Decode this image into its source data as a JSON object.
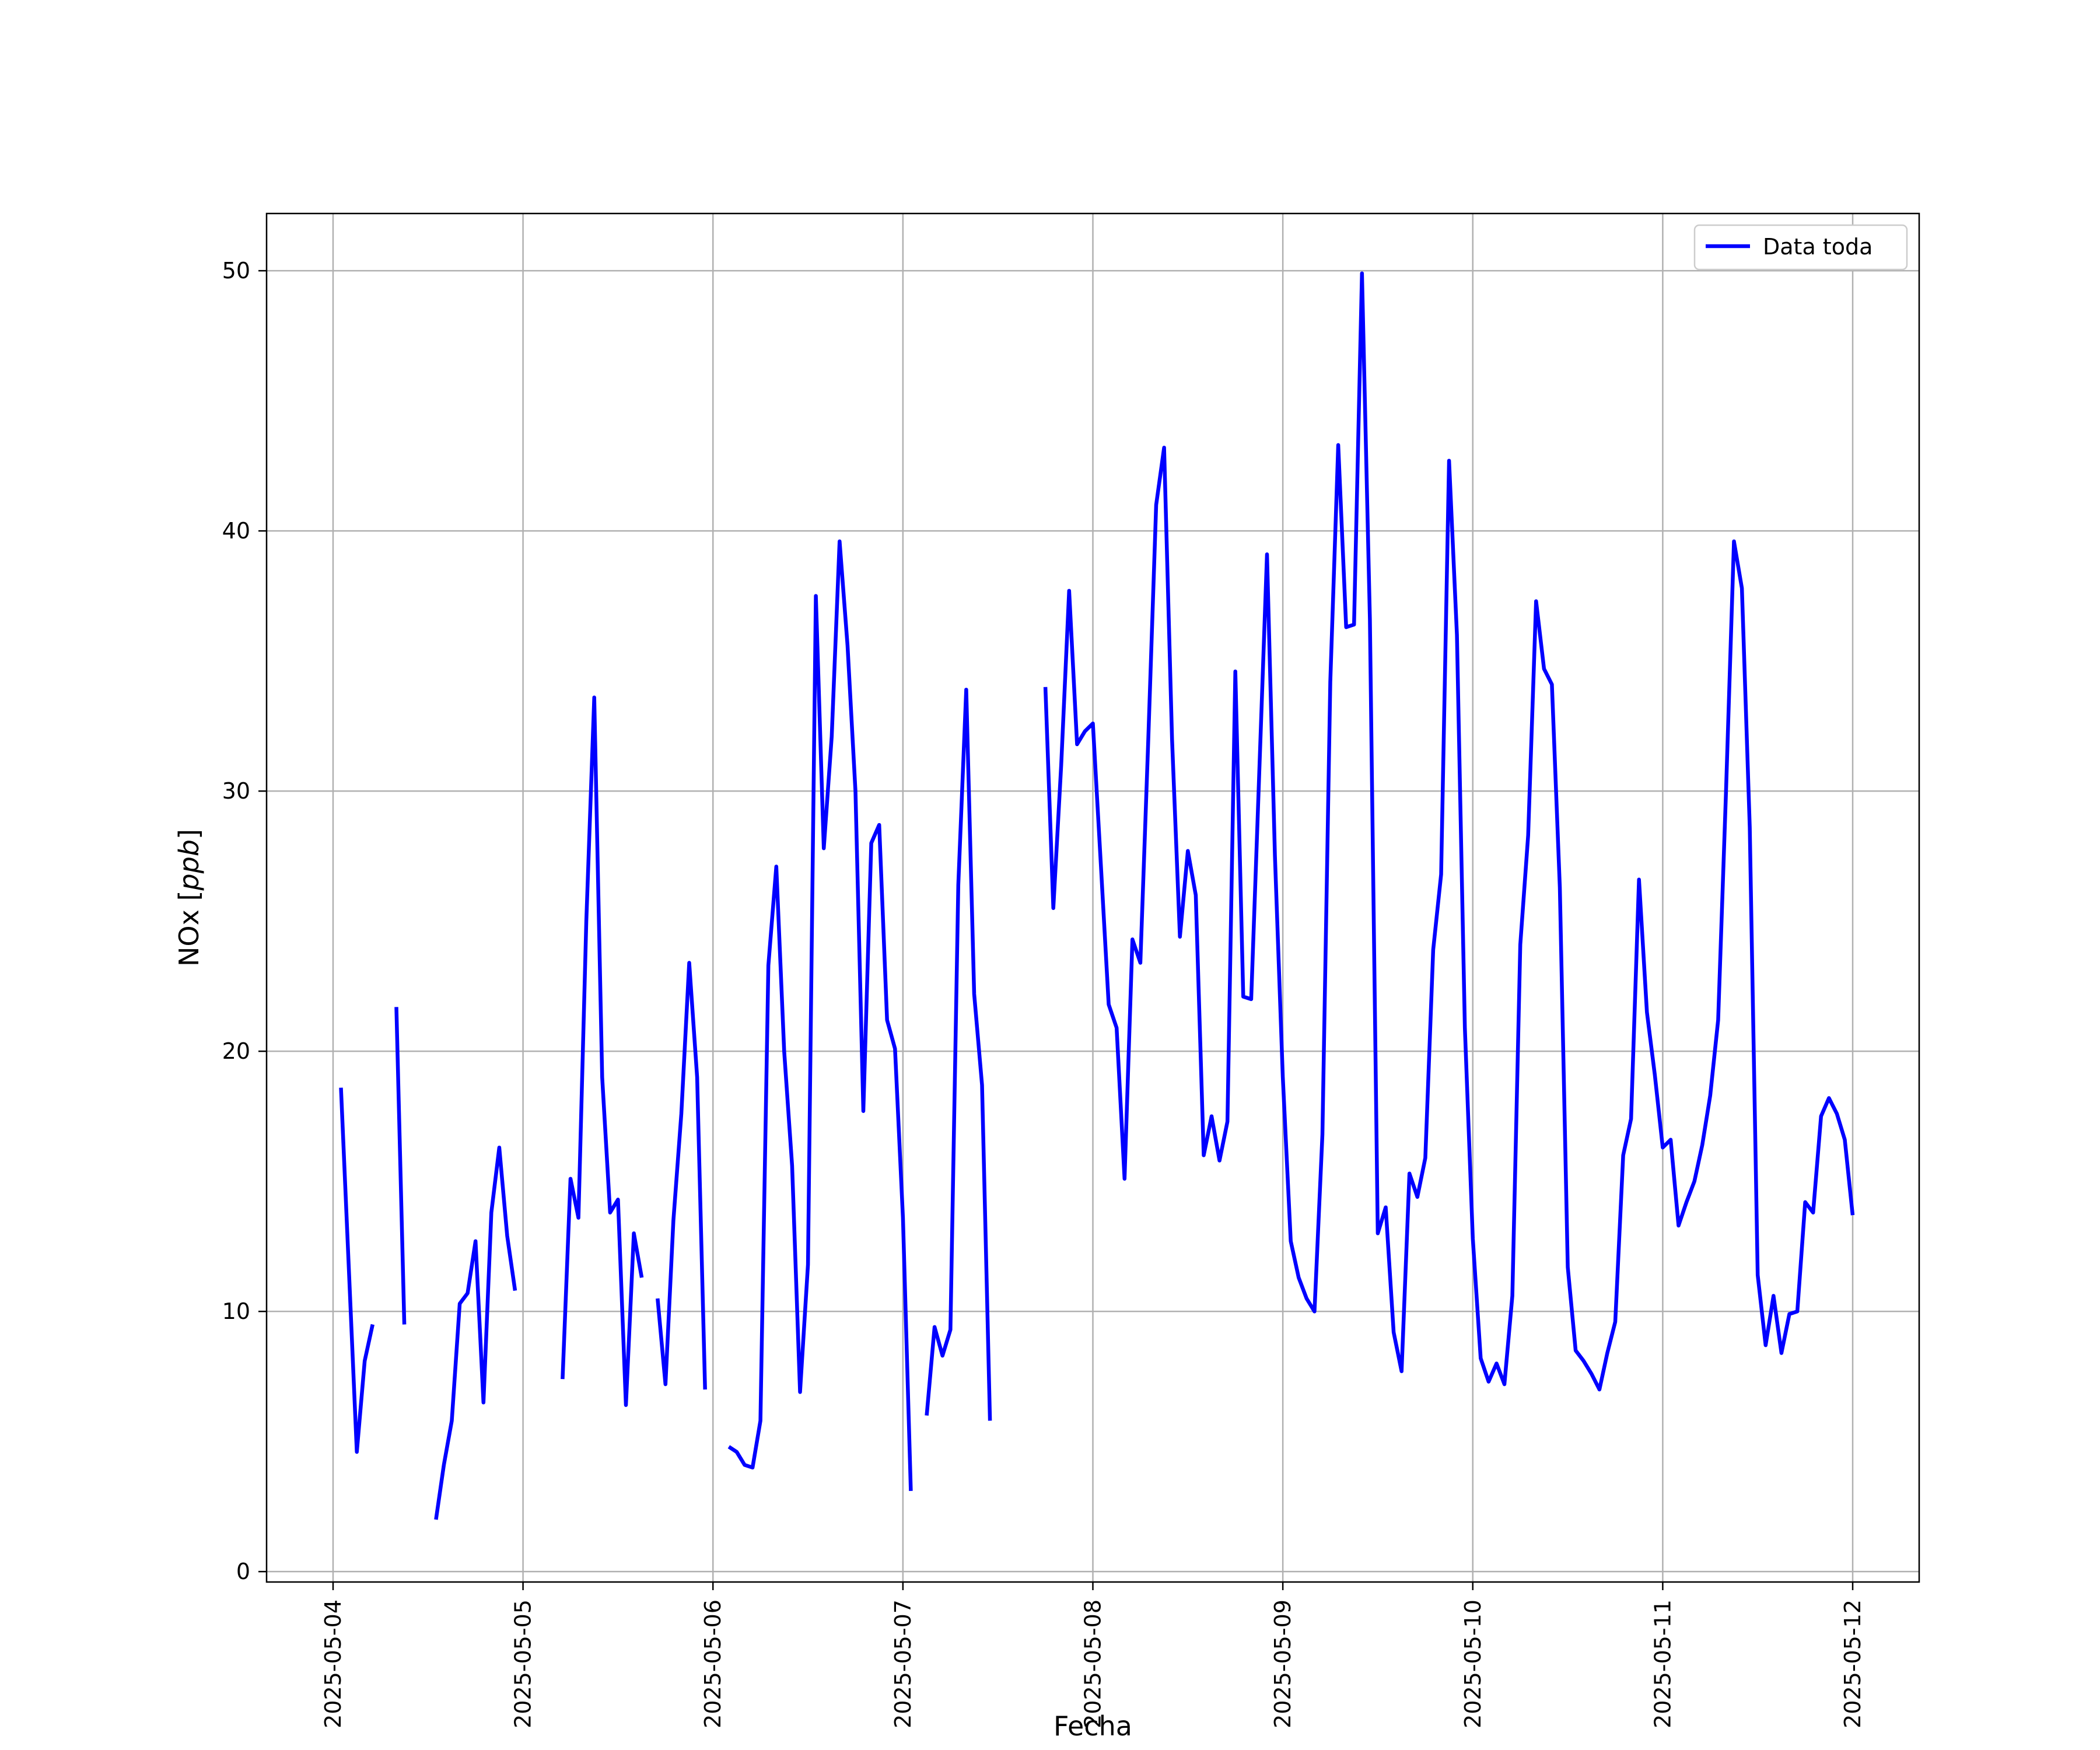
{
  "chart_data": {
    "type": "line",
    "title": "",
    "xlabel": "Fecha",
    "ylabel": "NOx [ppb]",
    "ylabel_main": "NOx ",
    "ylabel_unit": "ppb",
    "ylim": [
      -0.4,
      52.2
    ],
    "xlim": [
      "2025-05-03 15:36",
      "2025-05-12 08:24"
    ],
    "grid": true,
    "legend_position": "upper-right",
    "line_color": "#0000ff",
    "x_ticks": [
      "2025-05-04",
      "2025-05-05",
      "2025-05-06",
      "2025-05-07",
      "2025-05-08",
      "2025-05-09",
      "2025-05-10",
      "2025-05-11",
      "2025-05-12"
    ],
    "y_ticks": [
      "0",
      "10",
      "20",
      "30",
      "40",
      "50"
    ],
    "series": [
      {
        "name": "Data toda",
        "segments": [
          [
            [
              "2025-05-04 01:00",
              18.6
            ],
            [
              "2025-05-04 02:00",
              11.6
            ],
            [
              "2025-05-04 03:00",
              4.6
            ],
            [
              "2025-05-04 04:00",
              8.1
            ],
            [
              "2025-05-04 05:00",
              9.5
            ]
          ],
          [
            [
              "2025-05-04 08:00",
              21.7
            ],
            [
              "2025-05-04 09:00",
              9.5
            ]
          ],
          [
            [
              "2025-05-04 13:00",
              2.0
            ],
            [
              "2025-05-04 14:00",
              4.1
            ],
            [
              "2025-05-04 15:00",
              5.8
            ],
            [
              "2025-05-04 16:00",
              10.3
            ],
            [
              "2025-05-04 17:00",
              10.7
            ],
            [
              "2025-05-04 18:00",
              12.7
            ],
            [
              "2025-05-04 19:00",
              6.5
            ],
            [
              "2025-05-04 20:00",
              13.8
            ],
            [
              "2025-05-04 21:00",
              16.3
            ],
            [
              "2025-05-04 22:00",
              12.9
            ],
            [
              "2025-05-04 23:00",
              10.8
            ]
          ],
          [
            [
              "2025-05-05 05:00",
              7.4
            ],
            [
              "2025-05-05 06:00",
              15.1
            ],
            [
              "2025-05-05 07:00",
              13.6
            ],
            [
              "2025-05-05 08:00",
              25.0
            ],
            [
              "2025-05-05 09:00",
              33.6
            ],
            [
              "2025-05-05 10:00",
              19.0
            ],
            [
              "2025-05-05 11:00",
              13.8
            ],
            [
              "2025-05-05 12:00",
              14.3
            ],
            [
              "2025-05-05 13:00",
              6.4
            ],
            [
              "2025-05-05 14:00",
              13.0
            ],
            [
              "2025-05-05 15:00",
              11.3
            ]
          ],
          [
            [
              "2025-05-05 17:00",
              10.5
            ],
            [
              "2025-05-05 18:00",
              7.2
            ],
            [
              "2025-05-05 19:00",
              13.5
            ],
            [
              "2025-05-05 20:00",
              17.6
            ],
            [
              "2025-05-05 21:00",
              23.4
            ],
            [
              "2025-05-05 22:00",
              19.0
            ],
            [
              "2025-05-05 23:00",
              7.0
            ]
          ],
          [
            [
              "2025-05-06 02:00",
              4.8
            ],
            [
              "2025-05-06 03:00",
              4.6
            ],
            [
              "2025-05-06 04:00",
              4.1
            ],
            [
              "2025-05-06 05:00",
              4.0
            ],
            [
              "2025-05-06 06:00",
              5.8
            ],
            [
              "2025-05-06 07:00",
              23.3
            ],
            [
              "2025-05-06 08:00",
              27.1
            ],
            [
              "2025-05-06 09:00",
              20.0
            ],
            [
              "2025-05-06 10:00",
              15.6
            ],
            [
              "2025-05-06 11:00",
              6.9
            ],
            [
              "2025-05-06 12:00",
              11.8
            ],
            [
              "2025-05-06 13:00",
              37.5
            ],
            [
              "2025-05-06 14:00",
              27.8
            ],
            [
              "2025-05-06 15:00",
              32.1
            ],
            [
              "2025-05-06 16:00",
              39.6
            ],
            [
              "2025-05-06 17:00",
              35.6
            ],
            [
              "2025-05-06 18:00",
              30.0
            ],
            [
              "2025-05-06 19:00",
              17.7
            ],
            [
              "2025-05-06 20:00",
              28.0
            ],
            [
              "2025-05-06 21:00",
              28.7
            ],
            [
              "2025-05-06 22:00",
              21.2
            ],
            [
              "2025-05-06 23:00",
              20.1
            ],
            [
              "2025-05-07 00:00",
              13.6
            ],
            [
              "2025-05-07 01:00",
              3.1
            ]
          ],
          [
            [
              "2025-05-07 03:00",
              6.0
            ],
            [
              "2025-05-07 04:00",
              9.4
            ],
            [
              "2025-05-07 05:00",
              8.3
            ],
            [
              "2025-05-07 06:00",
              9.3
            ],
            [
              "2025-05-07 07:00",
              26.4
            ],
            [
              "2025-05-07 08:00",
              33.9
            ],
            [
              "2025-05-07 09:00",
              22.2
            ],
            [
              "2025-05-07 10:00",
              18.7
            ],
            [
              "2025-05-07 11:00",
              5.8
            ]
          ],
          [
            [
              "2025-05-07 18:00",
              34.0
            ],
            [
              "2025-05-07 19:00",
              25.5
            ],
            [
              "2025-05-07 20:00",
              31.0
            ],
            [
              "2025-05-07 21:00",
              37.7
            ],
            [
              "2025-05-07 22:00",
              31.8
            ],
            [
              "2025-05-07 23:00",
              32.3
            ],
            [
              "2025-05-08 00:00",
              32.6
            ],
            [
              "2025-05-08 01:00",
              27.2
            ],
            [
              "2025-05-08 02:00",
              21.8
            ],
            [
              "2025-05-08 03:00",
              20.9
            ],
            [
              "2025-05-08 04:00",
              15.1
            ],
            [
              "2025-05-08 05:00",
              24.3
            ],
            [
              "2025-05-08 06:00",
              23.4
            ],
            [
              "2025-05-08 07:00",
              32.0
            ],
            [
              "2025-05-08 08:00",
              41.0
            ],
            [
              "2025-05-08 09:00",
              43.2
            ],
            [
              "2025-05-08 10:00",
              32.0
            ],
            [
              "2025-05-08 11:00",
              24.4
            ],
            [
              "2025-05-08 12:00",
              27.7
            ],
            [
              "2025-05-08 13:00",
              26.0
            ],
            [
              "2025-05-08 14:00",
              16.0
            ],
            [
              "2025-05-08 15:00",
              17.5
            ],
            [
              "2025-05-08 16:00",
              15.8
            ],
            [
              "2025-05-08 17:00",
              17.3
            ],
            [
              "2025-05-08 18:00",
              34.6
            ],
            [
              "2025-05-08 19:00",
              22.1
            ],
            [
              "2025-05-08 20:00",
              22.0
            ],
            [
              "2025-05-08 21:00",
              30.5
            ],
            [
              "2025-05-08 22:00",
              39.1
            ],
            [
              "2025-05-08 23:00",
              27.5
            ],
            [
              "2025-05-09 00:00",
              19.0
            ],
            [
              "2025-05-09 01:00",
              12.7
            ],
            [
              "2025-05-09 02:00",
              11.3
            ],
            [
              "2025-05-09 03:00",
              10.5
            ],
            [
              "2025-05-09 04:00",
              10.0
            ],
            [
              "2025-05-09 05:00",
              16.8
            ],
            [
              "2025-05-09 06:00",
              34.2
            ],
            [
              "2025-05-09 07:00",
              43.3
            ],
            [
              "2025-05-09 08:00",
              36.3
            ],
            [
              "2025-05-09 09:00",
              36.4
            ],
            [
              "2025-05-09 10:00",
              49.9
            ],
            [
              "2025-05-09 11:00",
              36.6
            ],
            [
              "2025-05-09 12:00",
              13.0
            ],
            [
              "2025-05-09 13:00",
              14.0
            ],
            [
              "2025-05-09 14:00",
              9.2
            ],
            [
              "2025-05-09 15:00",
              7.7
            ],
            [
              "2025-05-09 16:00",
              15.3
            ],
            [
              "2025-05-09 17:00",
              14.4
            ],
            [
              "2025-05-09 18:00",
              15.9
            ],
            [
              "2025-05-09 19:00",
              23.9
            ],
            [
              "2025-05-09 20:00",
              26.8
            ],
            [
              "2025-05-09 21:00",
              42.7
            ],
            [
              "2025-05-09 22:00",
              36.0
            ],
            [
              "2025-05-09 23:00",
              20.9
            ],
            [
              "2025-05-10 00:00",
              12.8
            ],
            [
              "2025-05-10 01:00",
              8.2
            ],
            [
              "2025-05-10 02:00",
              7.3
            ],
            [
              "2025-05-10 03:00",
              8.0
            ],
            [
              "2025-05-10 04:00",
              7.2
            ],
            [
              "2025-05-10 05:00",
              10.6
            ],
            [
              "2025-05-10 06:00",
              24.1
            ],
            [
              "2025-05-10 07:00",
              28.3
            ],
            [
              "2025-05-10 08:00",
              37.3
            ],
            [
              "2025-05-10 09:00",
              34.7
            ],
            [
              "2025-05-10 10:00",
              34.1
            ],
            [
              "2025-05-10 11:00",
              26.3
            ],
            [
              "2025-05-10 12:00",
              11.7
            ],
            [
              "2025-05-10 13:00",
              8.5
            ],
            [
              "2025-05-10 14:00",
              8.1
            ],
            [
              "2025-05-10 15:00",
              7.6
            ],
            [
              "2025-05-10 16:00",
              7.0
            ],
            [
              "2025-05-10 17:00",
              8.4
            ],
            [
              "2025-05-10 18:00",
              9.6
            ],
            [
              "2025-05-10 19:00",
              16.0
            ],
            [
              "2025-05-10 20:00",
              17.4
            ],
            [
              "2025-05-10 21:00",
              26.6
            ],
            [
              "2025-05-10 22:00",
              21.5
            ],
            [
              "2025-05-10 23:00",
              19.1
            ],
            [
              "2025-05-11 00:00",
              16.3
            ],
            [
              "2025-05-11 01:00",
              16.6
            ],
            [
              "2025-05-11 02:00",
              13.3
            ],
            [
              "2025-05-11 03:00",
              14.2
            ],
            [
              "2025-05-11 04:00",
              15.0
            ],
            [
              "2025-05-11 05:00",
              16.4
            ],
            [
              "2025-05-11 06:00",
              18.3
            ],
            [
              "2025-05-11 07:00",
              21.2
            ],
            [
              "2025-05-11 08:00",
              30.0
            ],
            [
              "2025-05-11 09:00",
              39.6
            ],
            [
              "2025-05-11 10:00",
              37.8
            ],
            [
              "2025-05-11 11:00",
              28.6
            ],
            [
              "2025-05-11 12:00",
              11.4
            ],
            [
              "2025-05-11 13:00",
              8.7
            ],
            [
              "2025-05-11 14:00",
              10.6
            ],
            [
              "2025-05-11 15:00",
              8.4
            ],
            [
              "2025-05-11 16:00",
              9.9
            ],
            [
              "2025-05-11 17:00",
              10.0
            ],
            [
              "2025-05-11 18:00",
              14.2
            ],
            [
              "2025-05-11 19:00",
              13.8
            ],
            [
              "2025-05-11 20:00",
              17.5
            ],
            [
              "2025-05-11 21:00",
              18.2
            ],
            [
              "2025-05-11 22:00",
              17.6
            ],
            [
              "2025-05-11 23:00",
              16.6
            ],
            [
              "2025-05-12 00:00",
              13.7
            ]
          ]
        ]
      }
    ]
  }
}
